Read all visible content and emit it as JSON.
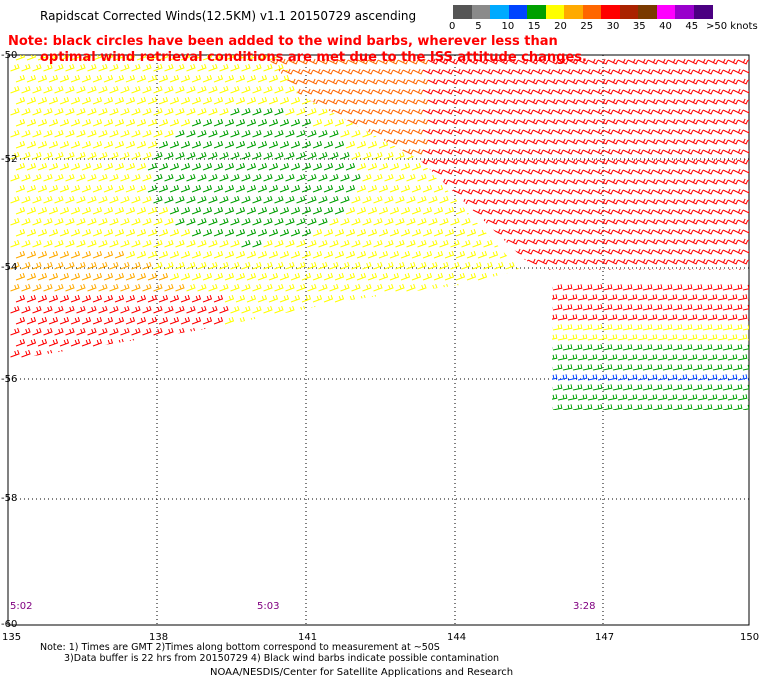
{
  "title": "Rapidscat Corrected Winds(12.5KM) v1.1 20150729 ascending",
  "note": {
    "line1": "Note: black circles have been added to the wind barbs, wherever less than",
    "line2": "optimal wind retrieval conditions are met due to the ISS attitude changes."
  },
  "legend": {
    "labels": [
      "0",
      "5",
      "10",
      "15",
      "20",
      "25",
      "30",
      "35",
      "40",
      "45"
    ],
    "unit_label": ">50 knots",
    "colors": [
      "#555555",
      "#8a8a8a",
      "#00aaff",
      "#0044ff",
      "#00a000",
      "#ffff00",
      "#ffaa00",
      "#ff6600",
      "#ff0000",
      "#aa2200",
      "#7a3a00",
      "#ff00ff",
      "#9900cc",
      "#4b0082"
    ]
  },
  "axes": {
    "lat_labels": [
      "-50",
      "-52",
      "-54",
      "-56",
      "-58",
      "-60"
    ],
    "lon_labels": [
      "135",
      "138",
      "141",
      "144",
      "147",
      "150"
    ]
  },
  "times": [
    "5:02",
    "5:03",
    "3:28"
  ],
  "footer": {
    "note1": "Note: 1) Times are GMT 2)Times along bottom correspond to measurement at ~50S",
    "note2": "3)Data buffer is 22 hrs from 20150729 4) Black wind barbs indicate possible contamination",
    "credit": "NOAA/NESDIS/Center for Satellite Applications and Research"
  },
  "map_data": {
    "extent": {
      "lon": [
        135,
        150
      ],
      "lat": [
        -60,
        -50
      ]
    },
    "swaths": [
      {
        "name": "swath-west",
        "zones": [
          {
            "color": "#00a000",
            "region": "center-north"
          },
          {
            "color": "#ffff00",
            "region": "surrounding"
          },
          {
            "color": "#ffaa00",
            "region": "south-west"
          },
          {
            "color": "#ff0000",
            "region": "south-west-edge"
          }
        ]
      },
      {
        "name": "swath-east",
        "zones": [
          {
            "color": "#ff0000",
            "region": "north-east"
          },
          {
            "color": "#ff6600",
            "region": "north-west"
          }
        ]
      }
    ]
  }
}
